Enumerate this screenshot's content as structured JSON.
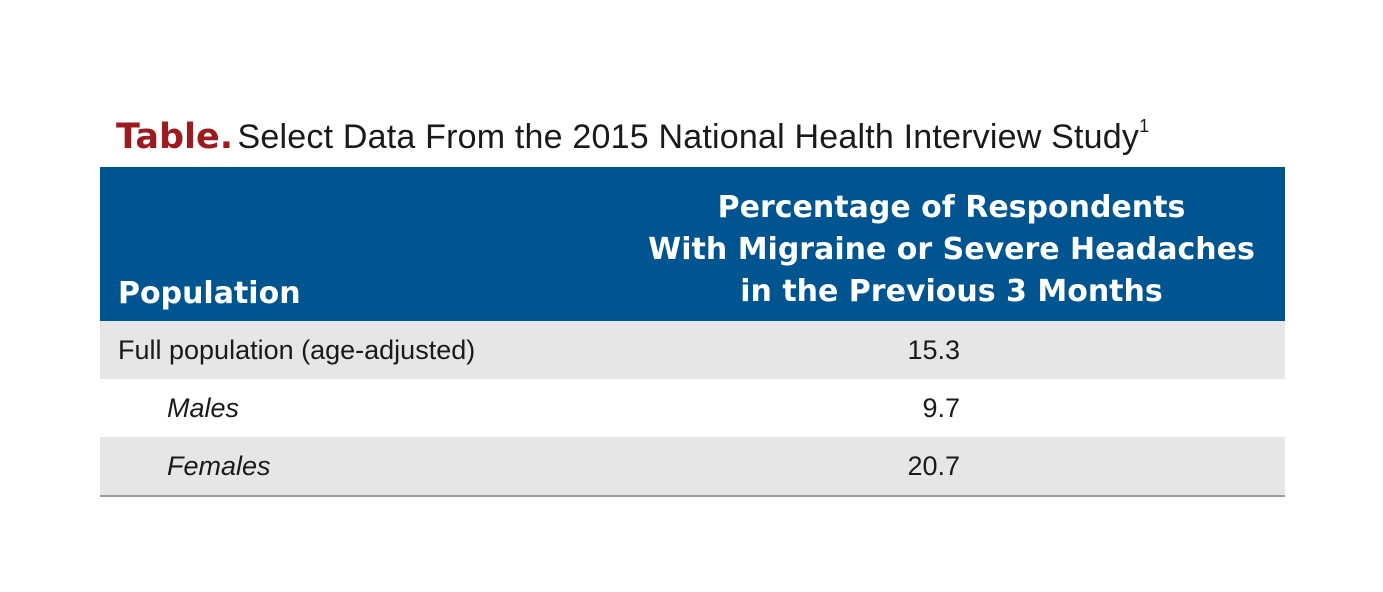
{
  "caption": {
    "label": "Table.",
    "text": "Select Data From the 2015 National Health Interview Study",
    "footnote": "1"
  },
  "table": {
    "headers": {
      "population": "Population",
      "percentage_lines": [
        "Percentage of Respondents",
        "With Migraine or Severe Headaches",
        "in the Previous 3 Months"
      ]
    },
    "rows": [
      {
        "population": "Full population (age-adjusted)",
        "value": "15.3",
        "indent": false,
        "shaded": true
      },
      {
        "population": "Males",
        "value": "9.7",
        "indent": true,
        "shaded": false
      },
      {
        "population": "Females",
        "value": "20.7",
        "indent": true,
        "shaded": true
      }
    ]
  },
  "colors": {
    "header_background": "#005490",
    "caption_label": "#9b1b1f",
    "shaded_row": "#e6e6e7"
  }
}
